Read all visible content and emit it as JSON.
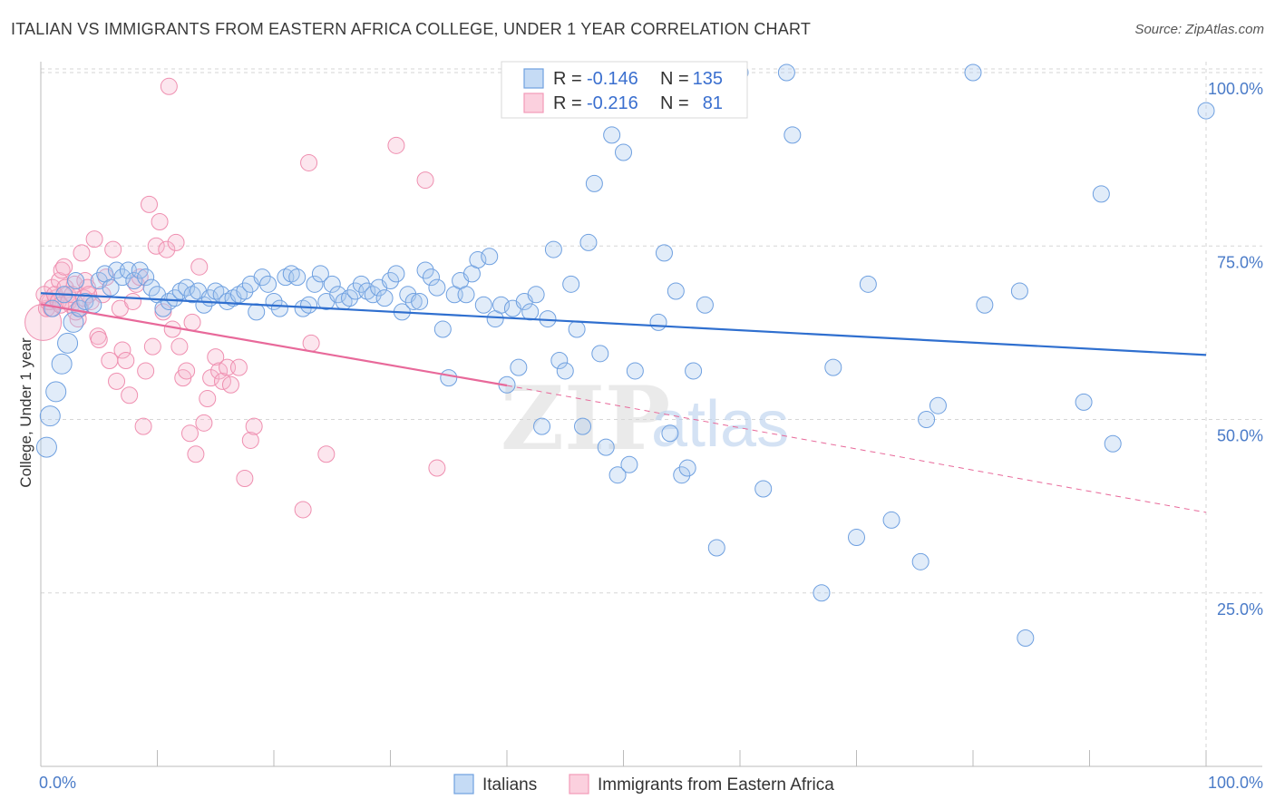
{
  "title": "ITALIAN VS IMMIGRANTS FROM EASTERN AFRICA COLLEGE, UNDER 1 YEAR CORRELATION CHART",
  "source": "Source: ZipAtlas.com",
  "watermark": {
    "zip": "ZIP",
    "atlas": "atlas"
  },
  "legend_top": [
    {
      "r_label": "R =",
      "r_value": "-0.146",
      "n_label": "N =",
      "n_value": "135",
      "color": "#6fa0e0"
    },
    {
      "r_label": "R =",
      "r_value": "-0.216",
      "n_label": "N =",
      "n_value": "81",
      "color": "#f29ab8"
    }
  ],
  "chart_data": {
    "type": "scatter",
    "ylabel": "College, Under 1 year",
    "x_tick_labels": [
      "0.0%",
      "100.0%"
    ],
    "y_tick_labels": [
      "100.0%",
      "75.0%",
      "50.0%",
      "25.0%"
    ],
    "y_ticks": [
      100,
      75,
      50,
      25
    ],
    "xlim": [
      0,
      100
    ],
    "ylim": [
      0,
      100
    ],
    "grid": true,
    "legend_placement": "bottom",
    "series": [
      {
        "name": "Italians",
        "color": "#6fa0e0",
        "trend": {
          "x": [
            0,
            100
          ],
          "y": [
            68.2,
            59.3
          ]
        },
        "points": [
          [
            0.5,
            46
          ],
          [
            0.8,
            50.5
          ],
          [
            1.3,
            54
          ],
          [
            1.8,
            58
          ],
          [
            2.3,
            61
          ],
          [
            2.8,
            64
          ],
          [
            3.3,
            66
          ],
          [
            3.8,
            67
          ],
          [
            4.5,
            66.5
          ],
          [
            5,
            70
          ],
          [
            5.5,
            71
          ],
          [
            6,
            69
          ],
          [
            6.5,
            71.5
          ],
          [
            7,
            70.5
          ],
          [
            7.5,
            71.5
          ],
          [
            8,
            70
          ],
          [
            8.5,
            71.5
          ],
          [
            9,
            70.5
          ],
          [
            9.5,
            69
          ],
          [
            10,
            68
          ],
          [
            10.5,
            66
          ],
          [
            11,
            67
          ],
          [
            11.5,
            67.5
          ],
          [
            12,
            68.5
          ],
          [
            12.5,
            69
          ],
          [
            13,
            68
          ],
          [
            13.5,
            68.5
          ],
          [
            14,
            66.5
          ],
          [
            14.5,
            67.5
          ],
          [
            15,
            68.5
          ],
          [
            15.5,
            68
          ],
          [
            16,
            67
          ],
          [
            16.5,
            67.5
          ],
          [
            17,
            68
          ],
          [
            17.5,
            68.5
          ],
          [
            18,
            69.5
          ],
          [
            18.5,
            65.5
          ],
          [
            19,
            70.5
          ],
          [
            19.5,
            69.5
          ],
          [
            20,
            67
          ],
          [
            20.5,
            66
          ],
          [
            21,
            70.5
          ],
          [
            21.5,
            71
          ],
          [
            22,
            70.5
          ],
          [
            22.5,
            66
          ],
          [
            23,
            66.5
          ],
          [
            23.5,
            69.5
          ],
          [
            24,
            71
          ],
          [
            24.5,
            67
          ],
          [
            25,
            69.5
          ],
          [
            25.5,
            68
          ],
          [
            26,
            67
          ],
          [
            26.5,
            67.5
          ],
          [
            27,
            68.5
          ],
          [
            27.5,
            69.5
          ],
          [
            28,
            68.5
          ],
          [
            28.5,
            68
          ],
          [
            29,
            69
          ],
          [
            29.5,
            67.5
          ],
          [
            30,
            70
          ],
          [
            30.5,
            71
          ],
          [
            31,
            65.5
          ],
          [
            31.5,
            68
          ],
          [
            32,
            67
          ],
          [
            32.5,
            67
          ],
          [
            33,
            71.5
          ],
          [
            33.5,
            70.5
          ],
          [
            34,
            69
          ],
          [
            34.5,
            63
          ],
          [
            35,
            56
          ],
          [
            35.5,
            68
          ],
          [
            36,
            70
          ],
          [
            36.5,
            68
          ],
          [
            37,
            71
          ],
          [
            37.5,
            73
          ],
          [
            38,
            66.5
          ],
          [
            38.5,
            73.5
          ],
          [
            39,
            64.5
          ],
          [
            39.5,
            66.5
          ],
          [
            40,
            55
          ],
          [
            40.5,
            66
          ],
          [
            41,
            57.5
          ],
          [
            41.5,
            67
          ],
          [
            42,
            65.5
          ],
          [
            42.5,
            68
          ],
          [
            43,
            49
          ],
          [
            43.5,
            64.5
          ],
          [
            44,
            74.5
          ],
          [
            44.5,
            58.5
          ],
          [
            45,
            57
          ],
          [
            45.5,
            69.5
          ],
          [
            46,
            63
          ],
          [
            46.5,
            49
          ],
          [
            47,
            75.5
          ],
          [
            47.5,
            84
          ],
          [
            48,
            59.5
          ],
          [
            48.5,
            46
          ],
          [
            49,
            91
          ],
          [
            49.5,
            42
          ],
          [
            50,
            88.5
          ],
          [
            50.5,
            43.5
          ],
          [
            51,
            57
          ],
          [
            52,
            100
          ],
          [
            53,
            64
          ],
          [
            53.5,
            74
          ],
          [
            54,
            48
          ],
          [
            54.5,
            68.5
          ],
          [
            55,
            42
          ],
          [
            55.5,
            43
          ],
          [
            56,
            57
          ],
          [
            57,
            66.5
          ],
          [
            58,
            31.5
          ],
          [
            60,
            100
          ],
          [
            62,
            40
          ],
          [
            64,
            100
          ],
          [
            64.5,
            91
          ],
          [
            67,
            25
          ],
          [
            68,
            57.5
          ],
          [
            70,
            33
          ],
          [
            71,
            69.5
          ],
          [
            73,
            35.5
          ],
          [
            75.5,
            29.5
          ],
          [
            76,
            50
          ],
          [
            77,
            52
          ],
          [
            80,
            100
          ],
          [
            81,
            66.5
          ],
          [
            84,
            68.5
          ],
          [
            84.5,
            18.5
          ],
          [
            89.5,
            52.5
          ],
          [
            91,
            82.5
          ],
          [
            92,
            46.5
          ],
          [
            100,
            94.5
          ],
          [
            1,
            66
          ],
          [
            2,
            68
          ],
          [
            3,
            70
          ]
        ]
      },
      {
        "name": "Immigrants from Eastern Africa",
        "color": "#f29ab8",
        "trend": {
          "x": [
            0,
            40
          ],
          "y": [
            66.6,
            54.9
          ]
        },
        "trend_dashed": {
          "x": [
            40,
            100
          ],
          "y": [
            54.9,
            36.6
          ]
        },
        "points": [
          [
            0.2,
            64
          ],
          [
            0.5,
            66
          ],
          [
            0.8,
            67
          ],
          [
            1,
            69
          ],
          [
            1.3,
            67.5
          ],
          [
            1.6,
            70
          ],
          [
            1.8,
            71.5
          ],
          [
            2,
            72
          ],
          [
            2.3,
            68
          ],
          [
            2.6,
            66.5
          ],
          [
            2.9,
            69.5
          ],
          [
            3.2,
            64.5
          ],
          [
            3.5,
            74
          ],
          [
            3.8,
            70
          ],
          [
            4,
            69
          ],
          [
            4.3,
            67
          ],
          [
            4.6,
            76
          ],
          [
            4.9,
            62
          ],
          [
            5,
            61.5
          ],
          [
            5.3,
            68
          ],
          [
            5.6,
            70.5
          ],
          [
            5.9,
            58.5
          ],
          [
            6.2,
            74.5
          ],
          [
            6.5,
            55.5
          ],
          [
            6.8,
            66
          ],
          [
            7,
            60
          ],
          [
            7.3,
            58.5
          ],
          [
            7.6,
            53.5
          ],
          [
            7.9,
            67
          ],
          [
            8.2,
            69.5
          ],
          [
            8.5,
            70.5
          ],
          [
            8.8,
            49
          ],
          [
            9,
            57
          ],
          [
            9.3,
            81
          ],
          [
            9.6,
            60.5
          ],
          [
            9.9,
            75
          ],
          [
            10.2,
            78.5
          ],
          [
            10.5,
            65.5
          ],
          [
            10.8,
            74.5
          ],
          [
            11,
            98
          ],
          [
            11.3,
            63
          ],
          [
            11.6,
            75.5
          ],
          [
            11.9,
            60.5
          ],
          [
            12.2,
            56
          ],
          [
            12.5,
            57
          ],
          [
            12.8,
            48
          ],
          [
            13,
            64
          ],
          [
            13.3,
            45
          ],
          [
            13.6,
            72
          ],
          [
            14,
            49.5
          ],
          [
            14.3,
            53
          ],
          [
            14.6,
            56
          ],
          [
            15,
            59
          ],
          [
            15.3,
            57
          ],
          [
            15.6,
            55.5
          ],
          [
            16,
            57.5
          ],
          [
            16.3,
            55
          ],
          [
            17,
            57.5
          ],
          [
            17.5,
            41.5
          ],
          [
            18,
            47
          ],
          [
            18.3,
            49
          ],
          [
            22.5,
            37
          ],
          [
            23,
            87
          ],
          [
            23.2,
            61
          ],
          [
            24.5,
            45
          ],
          [
            30.5,
            89.5
          ],
          [
            33,
            84.5
          ],
          [
            34,
            43
          ],
          [
            0.3,
            68
          ],
          [
            0.6,
            67
          ],
          [
            0.9,
            66
          ],
          [
            1.2,
            68
          ],
          [
            1.5,
            67
          ],
          [
            1.7,
            66.5
          ],
          [
            2.1,
            69
          ],
          [
            2.4,
            67
          ],
          [
            2.7,
            68
          ],
          [
            3,
            65.5
          ],
          [
            3.4,
            66
          ],
          [
            3.7,
            67.5
          ],
          [
            4.1,
            68
          ]
        ]
      }
    ]
  },
  "legend_bottom": [
    {
      "label": "Italians",
      "color": "#6fa0e0"
    },
    {
      "label": "Immigrants from Eastern Africa",
      "color": "#f29ab8"
    }
  ]
}
